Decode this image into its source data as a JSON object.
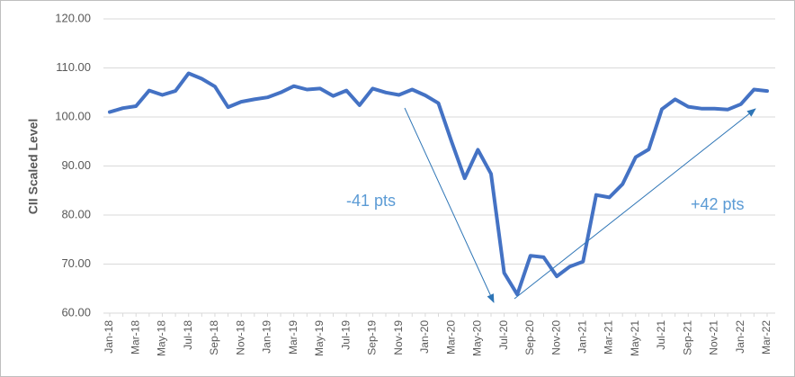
{
  "chart_data": {
    "type": "line",
    "y_label": "CII Scaled Level",
    "categories": [
      "Jan-18",
      null,
      "Mar-18",
      null,
      "May-18",
      null,
      "Jul-18",
      null,
      "Sep-18",
      null,
      "Nov-18",
      null,
      "Jan-19",
      null,
      "Mar-19",
      null,
      "May-19",
      null,
      "Jul-19",
      null,
      "Sep-19",
      null,
      "Nov-19",
      null,
      "Jan-20",
      null,
      "Mar-20",
      null,
      "May-20",
      null,
      "Jul-20",
      null,
      "Sep-20",
      null,
      "Nov-20",
      null,
      "Jan-21",
      null,
      "Mar-21",
      null,
      "May-21",
      null,
      "Jul-21",
      null,
      "Sep-21",
      null,
      "Nov-21",
      null,
      "Jan-22",
      null,
      "Mar-22"
    ],
    "values": [
      101.0,
      101.8,
      102.2,
      105.4,
      104.5,
      105.3,
      108.9,
      107.8,
      106.2,
      102.0,
      103.1,
      103.6,
      104.0,
      105.0,
      106.3,
      105.6,
      105.8,
      104.3,
      105.4,
      102.4,
      105.8,
      105.0,
      104.5,
      105.6,
      104.4,
      102.8,
      95.0,
      87.5,
      93.3,
      88.4,
      68.2,
      63.8,
      71.7,
      71.4,
      67.5,
      69.5,
      70.5,
      84.1,
      83.6,
      86.3,
      91.8,
      93.4,
      101.6,
      103.6,
      102.1,
      101.7,
      101.7,
      101.5,
      102.6,
      105.6,
      105.3
    ],
    "color": "#4472c4",
    "ylim": [
      60,
      120
    ],
    "yticks": [
      {
        "value": 60,
        "label": "60.00"
      },
      {
        "value": 70,
        "label": "70.00"
      },
      {
        "value": 80,
        "label": "80.00"
      },
      {
        "value": 90,
        "label": "90.00"
      },
      {
        "value": 100,
        "label": "100.00"
      },
      {
        "value": 110,
        "label": "110.00"
      },
      {
        "value": 120,
        "label": "120.00"
      }
    ],
    "grid": true,
    "annotations": [
      "-41 pts",
      "+42 pts"
    ]
  }
}
